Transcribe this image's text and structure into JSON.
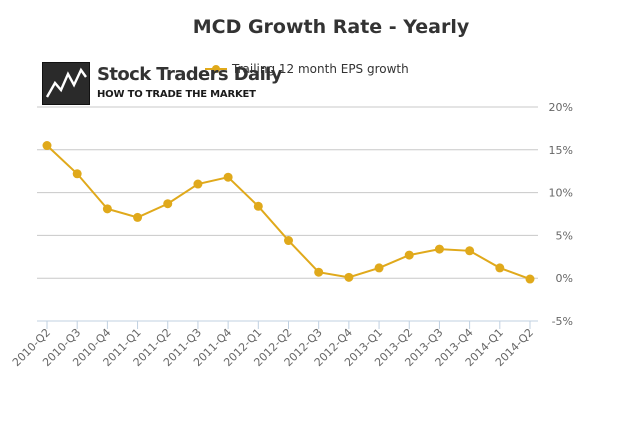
{
  "branding": {
    "logo_name": "Stock Traders Daily",
    "logo_tagline": "HOW TO TRADE THE MARKET"
  },
  "chart_data": {
    "type": "line",
    "title": "MCD Growth Rate - Yearly",
    "xlabel": "",
    "ylabel": "",
    "categories": [
      "2010-Q2",
      "2010-Q3",
      "2010-Q4",
      "2011-Q1",
      "2011-Q2",
      "2011-Q3",
      "2011-Q4",
      "2012-Q1",
      "2012-Q2",
      "2012-Q3",
      "2012-Q4",
      "2013-Q1",
      "2013-Q2",
      "2013-Q3",
      "2013-Q4",
      "2014-Q1",
      "2014-Q2"
    ],
    "series": [
      {
        "name": "Trailing 12 month EPS growth",
        "color": "#e0a91b",
        "values": [
          15.5,
          12.2,
          8.1,
          7.1,
          8.7,
          11.0,
          11.8,
          8.4,
          4.4,
          0.7,
          0.1,
          1.2,
          2.7,
          3.4,
          3.2,
          1.2,
          -0.1
        ]
      }
    ],
    "ylim": [
      -5,
      20
    ],
    "yticks": [
      "-5%",
      "0%",
      "5%",
      "10%",
      "15%",
      "20%"
    ],
    "grid": true,
    "legend": "top"
  }
}
